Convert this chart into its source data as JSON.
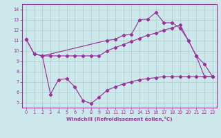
{
  "line1_x": [
    0,
    1,
    2,
    10,
    11,
    12,
    13,
    14,
    15,
    16,
    17,
    18,
    19,
    20,
    21,
    22,
    23
  ],
  "line1_y": [
    11.1,
    9.7,
    9.5,
    11.0,
    11.1,
    11.5,
    11.6,
    13.0,
    13.05,
    13.7,
    12.7,
    12.7,
    12.2,
    11.0,
    9.5,
    8.7,
    7.5
  ],
  "line2_x": [
    0,
    1,
    2,
    3,
    4,
    5,
    6,
    7,
    8,
    9,
    10,
    11,
    12,
    13,
    14,
    15,
    16,
    17,
    18,
    19,
    20,
    21,
    22,
    23
  ],
  "line2_y": [
    11.1,
    9.7,
    9.5,
    9.5,
    9.5,
    9.5,
    9.5,
    9.5,
    9.5,
    9.5,
    10.0,
    10.3,
    10.6,
    10.9,
    11.2,
    11.5,
    11.7,
    12.0,
    12.2,
    12.5,
    11.0,
    9.5,
    7.5,
    7.5
  ],
  "line3_x": [
    2,
    3,
    4,
    5,
    6,
    7,
    8,
    9,
    10,
    11,
    12,
    13,
    14,
    15,
    16,
    17,
    18,
    19,
    20,
    21,
    22,
    23
  ],
  "line3_y": [
    9.5,
    5.8,
    7.2,
    7.3,
    6.5,
    5.2,
    4.9,
    5.5,
    6.2,
    6.5,
    6.8,
    7.0,
    7.2,
    7.3,
    7.4,
    7.5,
    7.5,
    7.5,
    7.5,
    7.5,
    7.5,
    7.5
  ],
  "line_color": "#993399",
  "bg_color": "#cce8ea",
  "grid_color": "#aacccc",
  "xlabel": "Windchill (Refroidissement éolien,°C)",
  "xlim": [
    -0.5,
    23.5
  ],
  "ylim": [
    4.5,
    14.5
  ],
  "xticks": [
    0,
    1,
    2,
    3,
    4,
    5,
    6,
    7,
    8,
    9,
    10,
    11,
    12,
    13,
    14,
    15,
    16,
    17,
    18,
    19,
    20,
    21,
    22,
    23
  ],
  "yticks": [
    5,
    6,
    7,
    8,
    9,
    10,
    11,
    12,
    13,
    14
  ]
}
